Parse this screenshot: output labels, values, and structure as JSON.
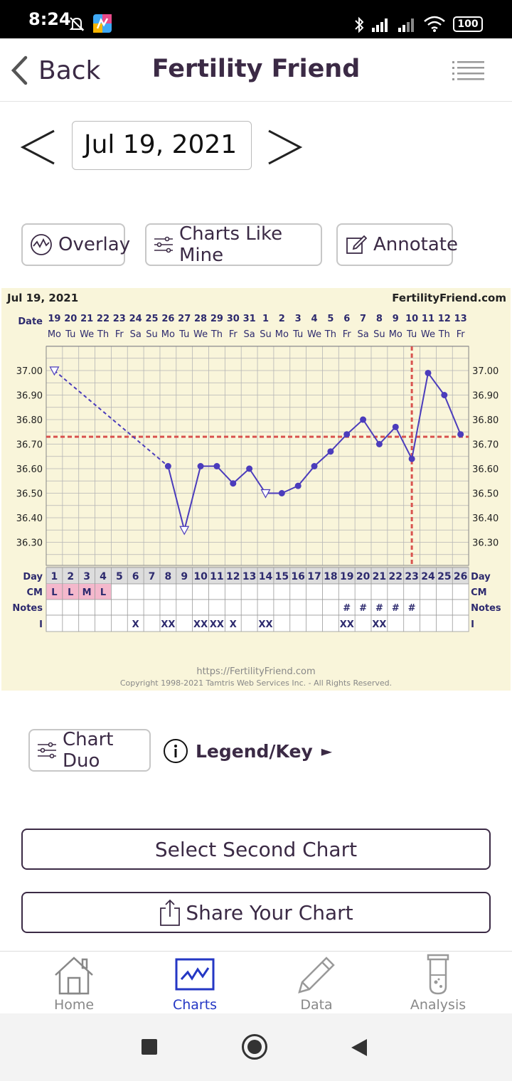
{
  "status_bar": {
    "time": "8:24",
    "battery": "100"
  },
  "header": {
    "back_label": "Back",
    "title": "Fertility Friend"
  },
  "date_nav": {
    "current_date": "Jul 19, 2021"
  },
  "toolbar": {
    "overlay_label": "Overlay",
    "charts_like_mine_label": "Charts Like Mine",
    "annotate_label": "Annotate"
  },
  "chart_data": {
    "type": "line",
    "date_label": "Jul 19, 2021",
    "brand": "FertilityFriend.com",
    "date_row_label": "Date",
    "dates": [
      "19",
      "20",
      "21",
      "22",
      "23",
      "24",
      "25",
      "26",
      "27",
      "28",
      "29",
      "30",
      "31",
      "1",
      "2",
      "3",
      "4",
      "5",
      "6",
      "7",
      "8",
      "9",
      "10",
      "11",
      "12",
      "13"
    ],
    "weekdays": [
      "Mo",
      "Tu",
      "We",
      "Th",
      "Fr",
      "Sa",
      "Su",
      "Mo",
      "Tu",
      "We",
      "Th",
      "Fr",
      "Sa",
      "Su",
      "Mo",
      "Tu",
      "We",
      "Th",
      "Fr",
      "Sa",
      "Su",
      "Mo",
      "Tu",
      "We",
      "Th",
      "Fr"
    ],
    "cycle_days": [
      "1",
      "2",
      "3",
      "4",
      "5",
      "6",
      "7",
      "8",
      "9",
      "10",
      "11",
      "12",
      "13",
      "14",
      "15",
      "16",
      "17",
      "18",
      "19",
      "20",
      "21",
      "22",
      "23",
      "24",
      "25",
      "26"
    ],
    "y_ticks": [
      "37.00",
      "36.90",
      "36.80",
      "36.70",
      "36.60",
      "36.50",
      "36.40",
      "36.30"
    ],
    "ylim": [
      36.2,
      37.1
    ],
    "coverline": 36.73,
    "ovulation_day": 23,
    "temperature": [
      37.0,
      null,
      null,
      null,
      null,
      null,
      null,
      36.61,
      36.35,
      36.61,
      36.61,
      36.54,
      36.6,
      36.5,
      36.5,
      36.53,
      36.61,
      36.67,
      36.74,
      36.8,
      36.7,
      36.77,
      36.64,
      36.99,
      36.9,
      36.74
    ],
    "discarded_days": [
      1,
      9,
      14
    ],
    "row_labels": {
      "day": "Day",
      "cm": "CM",
      "notes": "Notes",
      "intercourse": "I"
    },
    "cm": [
      "L",
      "L",
      "M",
      "L",
      "",
      "",
      "",
      "",
      "",
      "",
      "",
      "",
      "",
      "",
      "",
      "",
      "",
      "",
      "",
      "",
      "",
      "",
      "",
      "",
      "",
      ""
    ],
    "notes": [
      "",
      "",
      "",
      "",
      "",
      "",
      "",
      "",
      "",
      "",
      "",
      "",
      "",
      "",
      "",
      "",
      "",
      "",
      "#",
      "#",
      "#",
      "#",
      "#",
      "",
      "",
      ""
    ],
    "intercourse": [
      "",
      "",
      "",
      "",
      "",
      "X",
      "",
      "XX",
      "",
      "XX",
      "XX",
      "X",
      "",
      "XX",
      "",
      "",
      "",
      "",
      "XX",
      "",
      "XX",
      "",
      "",
      "",
      "",
      ""
    ],
    "footer_url": "https://FertilityFriend.com",
    "footer_copyright": "Copyright 1998-2021 Tamtris Web Services Inc. - All Rights Reserved.",
    "colors": {
      "line": "#4b3cbc",
      "coverline": "#d9534f",
      "background": "#f9f5da",
      "grid": "#b5b5b5",
      "cm_fill": "#f4b8cc"
    }
  },
  "actions": {
    "chart_duo_label": "Chart Duo",
    "legend_label": "Legend/Key",
    "legend_arrow": "►",
    "select_second_chart_label": "Select Second Chart",
    "share_chart_label": "Share Your Chart"
  },
  "bottom_nav": [
    {
      "label": "Home",
      "icon": "home-icon"
    },
    {
      "label": "Charts",
      "icon": "chart-icon",
      "active": true
    },
    {
      "label": "Data",
      "icon": "pencil-icon"
    },
    {
      "label": "Analysis",
      "icon": "test-tube-icon"
    }
  ]
}
